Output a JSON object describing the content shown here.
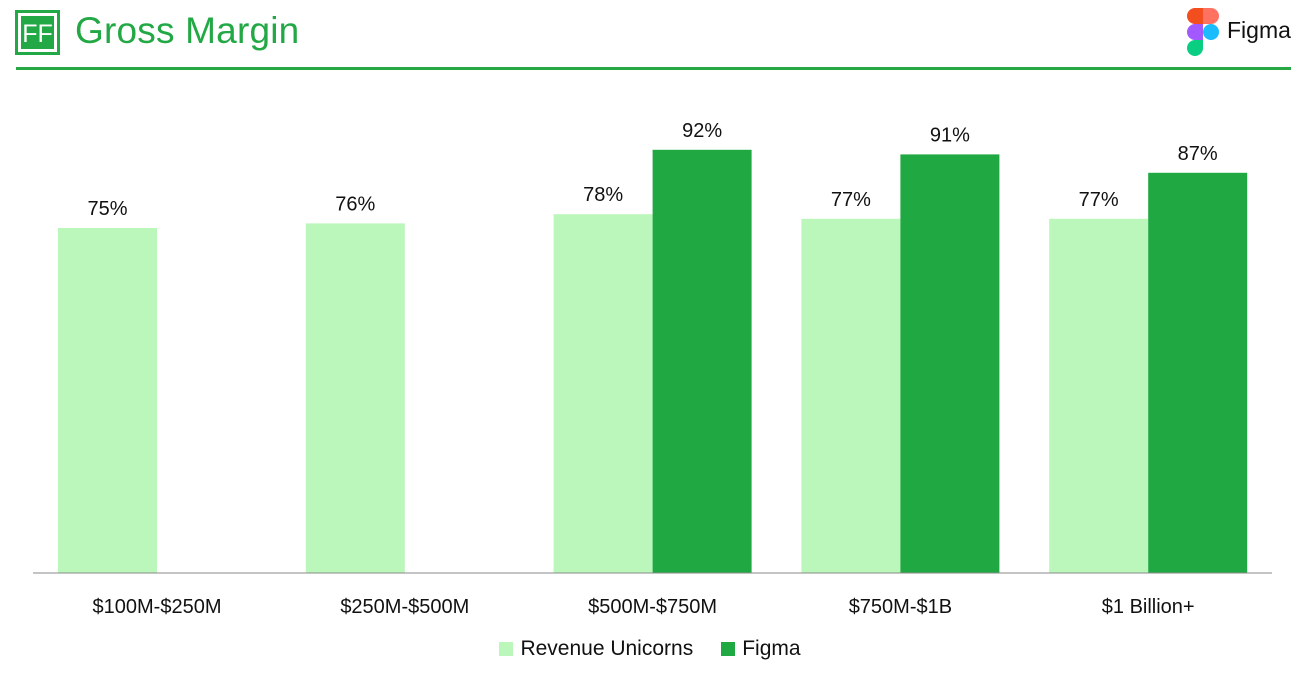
{
  "header": {
    "logo_text": "FF",
    "title": "Gross Margin",
    "company_name": "Figma",
    "accent_color": "#22a845"
  },
  "legend": {
    "items": [
      {
        "label": "Revenue Unicorns",
        "color": "#bbf7bb"
      },
      {
        "label": "Figma",
        "color": "#20a842"
      }
    ]
  },
  "chart_data": {
    "type": "bar",
    "title": "Gross Margin",
    "xlabel": "",
    "ylabel": "",
    "ylim": [
      0,
      100
    ],
    "grid": false,
    "legend_position": "bottom-center",
    "categories": [
      "$100M-$250M",
      "$250M-$500M",
      "$500M-$750M",
      "$750M-$1B",
      "$1 Billion+"
    ],
    "series": [
      {
        "name": "Revenue Unicorns",
        "values": [
          75,
          76,
          78,
          77,
          77
        ],
        "color": "#bbf7bb"
      },
      {
        "name": "Figma",
        "values": [
          null,
          null,
          92,
          91,
          87
        ],
        "color": "#20a842"
      }
    ],
    "value_suffix": "%"
  }
}
